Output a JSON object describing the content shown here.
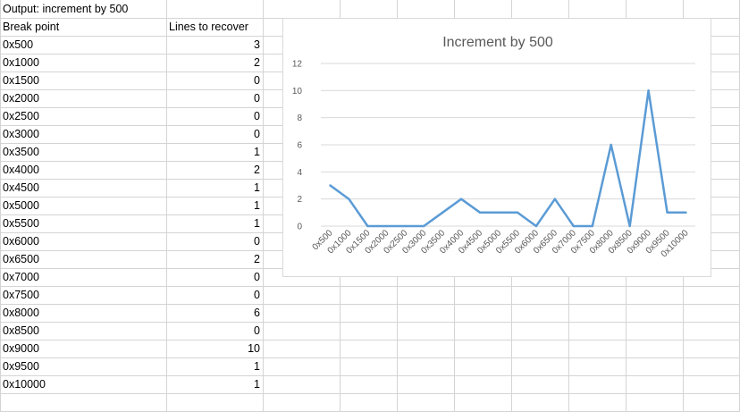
{
  "sheet": {
    "title_cell": "Output: increment by 500",
    "headers": [
      "Break point",
      "Lines to recover"
    ],
    "rows": [
      {
        "break_point": "0x500",
        "lines": "3"
      },
      {
        "break_point": "0x1000",
        "lines": "2"
      },
      {
        "break_point": "0x1500",
        "lines": "0"
      },
      {
        "break_point": "0x2000",
        "lines": "0"
      },
      {
        "break_point": "0x2500",
        "lines": "0"
      },
      {
        "break_point": "0x3000",
        "lines": "0"
      },
      {
        "break_point": "0x3500",
        "lines": "1"
      },
      {
        "break_point": "0x4000",
        "lines": "2"
      },
      {
        "break_point": "0x4500",
        "lines": "1"
      },
      {
        "break_point": "0x5000",
        "lines": "1"
      },
      {
        "break_point": "0x5500",
        "lines": "1"
      },
      {
        "break_point": "0x6000",
        "lines": "0"
      },
      {
        "break_point": "0x6500",
        "lines": "2"
      },
      {
        "break_point": "0x7000",
        "lines": "0"
      },
      {
        "break_point": "0x7500",
        "lines": "0"
      },
      {
        "break_point": "0x8000",
        "lines": "6"
      },
      {
        "break_point": "0x8500",
        "lines": "0"
      },
      {
        "break_point": "0x9000",
        "lines": "10"
      },
      {
        "break_point": "0x9500",
        "lines": "1"
      },
      {
        "break_point": "0x10000",
        "lines": "1"
      }
    ]
  },
  "chart_data": {
    "type": "line",
    "title": "Increment by 500",
    "categories": [
      "0x500",
      "0x1000",
      "0x1500",
      "0x2000",
      "0x2500",
      "0x3000",
      "0x3500",
      "0x4000",
      "0x4500",
      "0x5000",
      "0x5500",
      "0x6000",
      "0x6500",
      "0x7000",
      "0x7500",
      "0x8000",
      "0x8500",
      "0x9000",
      "0x9500",
      "0x10000"
    ],
    "series": [
      {
        "values": [
          3,
          2,
          0,
          0,
          0,
          0,
          1,
          2,
          1,
          1,
          1,
          0,
          2,
          0,
          0,
          6,
          0,
          10,
          1,
          1
        ],
        "color": "#5b9bd5"
      }
    ],
    "ylim": [
      0,
      12
    ],
    "yticks": [
      0,
      2,
      4,
      6,
      8,
      10,
      12
    ],
    "grid": true,
    "legend": "none",
    "gridline_color": "#d9d9d9"
  }
}
